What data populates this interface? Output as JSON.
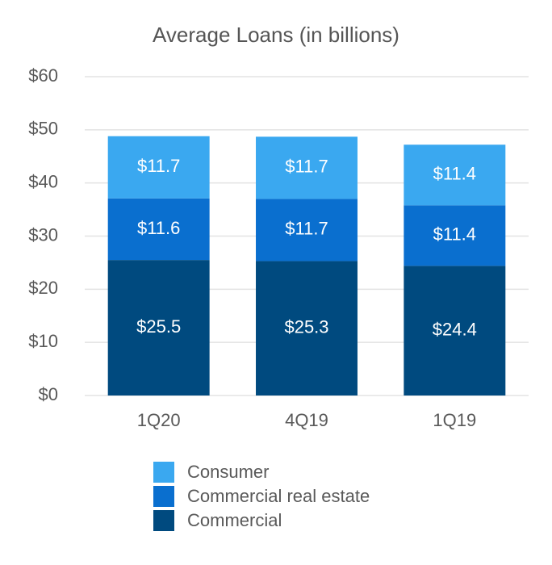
{
  "chart_data": {
    "type": "stacked_bar",
    "title": "Average Loans (in billions)",
    "categories": [
      "1Q20",
      "4Q19",
      "1Q19"
    ],
    "series": [
      {
        "name": "Commercial",
        "color": "#004a7f",
        "values": [
          25.5,
          25.3,
          24.4
        ],
        "value_labels": [
          "$25.5",
          "$25.3",
          "$24.4"
        ]
      },
      {
        "name": "Commercial real estate",
        "color": "#0a6fcf",
        "values": [
          11.6,
          11.7,
          11.4
        ],
        "value_labels": [
          "$11.6",
          "$11.7",
          "$11.4"
        ]
      },
      {
        "name": "Consumer",
        "color": "#3aa8f0",
        "values": [
          11.7,
          11.7,
          11.4
        ],
        "value_labels": [
          "$11.7",
          "$11.7",
          "$11.4"
        ]
      }
    ],
    "ylim": [
      0,
      60
    ],
    "yticks": [
      {
        "value": 0,
        "label": "$0"
      },
      {
        "value": 10,
        "label": "$10"
      },
      {
        "value": 20,
        "label": "$20"
      },
      {
        "value": 30,
        "label": "$30"
      },
      {
        "value": 40,
        "label": "$40"
      },
      {
        "value": 50,
        "label": "$50"
      },
      {
        "value": 60,
        "label": "$60"
      }
    ],
    "grid": true
  }
}
